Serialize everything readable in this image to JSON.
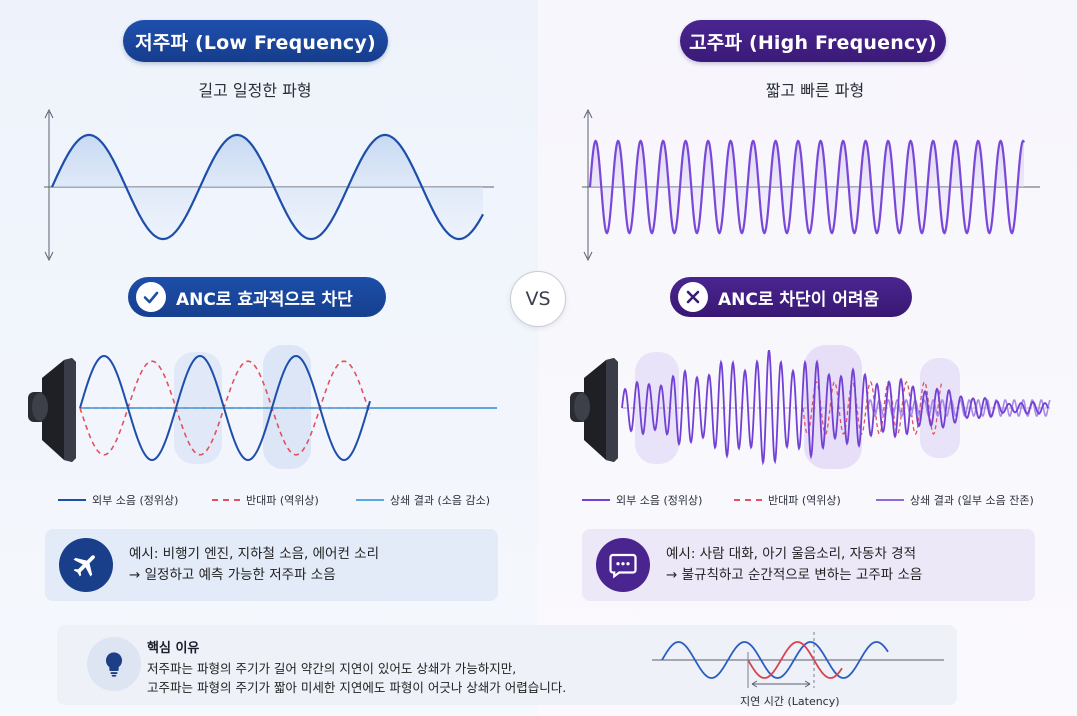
{
  "left": {
    "title": "저주파 (Low Frequency)",
    "subtitle": "길고 일정한 파형",
    "badge": "ANC로 효과적으로 차단",
    "badge_icon": "check-icon",
    "legend": [
      "외부 소음 (정위상)",
      "반대파 (역위상)",
      "상쇄 결과 (소음 감소)"
    ],
    "example_line1": "예시: 비행기 엔진, 지하철 소음, 에어컨 소리",
    "example_line2": "→ 일정하고 예측 가능한 저주파 소음",
    "example_icon": "airplane-icon"
  },
  "vs": "VS",
  "right": {
    "title": "고주파 (High Frequency)",
    "subtitle": "짧고 빠른 파형",
    "badge": "ANC로 차단이 어려움",
    "badge_icon": "x-icon",
    "legend": [
      "외부 소음 (정위상)",
      "반대파 (역위상)",
      "상쇄 결과 (일부 소음 잔존)"
    ],
    "example_line1": "예시: 사람 대화, 아기 울음소리, 자동차 경적",
    "example_line2": "→ 불규칙하고 순간적으로 변하는 고주파 소음",
    "example_icon": "chat-bubble-icon"
  },
  "bottom": {
    "title": "핵심 이유",
    "line1": "저주파는 파형의 주기가 길어 약간의 지연이 있어도 상쇄가 가능하지만,",
    "line2": "고주파는 파형의 주기가 짧아 미세한 지연에도 파형이 어긋나 상쇄가 어렵습니다.",
    "latency_label": "지연 시간 (Latency)",
    "icon": "lightbulb-icon"
  },
  "colors": {
    "blue": "#1d4ea9",
    "purple": "#6b3fd0",
    "antiphase_red": "#e0525f",
    "result_lightblue": "#5aa8e0"
  }
}
